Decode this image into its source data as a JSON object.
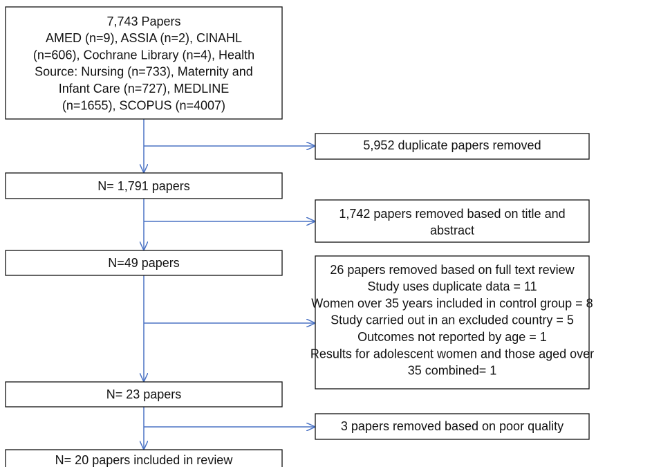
{
  "nodes": [
    {
      "lines": [
        "7,743 Papers",
        "AMED (n=9), ASSIA (n=2), CINAHL",
        "(n=606), Cochrane Library (n=4), Health",
        "Source: Nursing (n=733), Maternity and",
        "Infant Care (n=727), MEDLINE",
        "(n=1655), SCOPUS (n=4007)"
      ]
    },
    {
      "lines": [
        "N= 1,791 papers"
      ]
    },
    {
      "lines": [
        "N=49 papers"
      ]
    },
    {
      "lines": [
        "N= 23 papers"
      ]
    },
    {
      "lines": [
        "N= 20 papers included in review"
      ]
    }
  ],
  "exclusions": [
    {
      "lines": [
        "5,952 duplicate papers removed"
      ]
    },
    {
      "lines": [
        "1,742 papers removed based on title and",
        "abstract"
      ]
    },
    {
      "lines": [
        "26 papers removed based on full text review",
        "Study uses duplicate data = 11",
        "Women over 35 years included in control group = 8",
        "Study carried out in an excluded country = 5",
        "Outcomes not reported by age = 1",
        "Results for adolescent women and those aged over",
        "35 combined= 1"
      ]
    },
    {
      "lines": [
        "3 papers removed based on poor quality"
      ]
    }
  ]
}
